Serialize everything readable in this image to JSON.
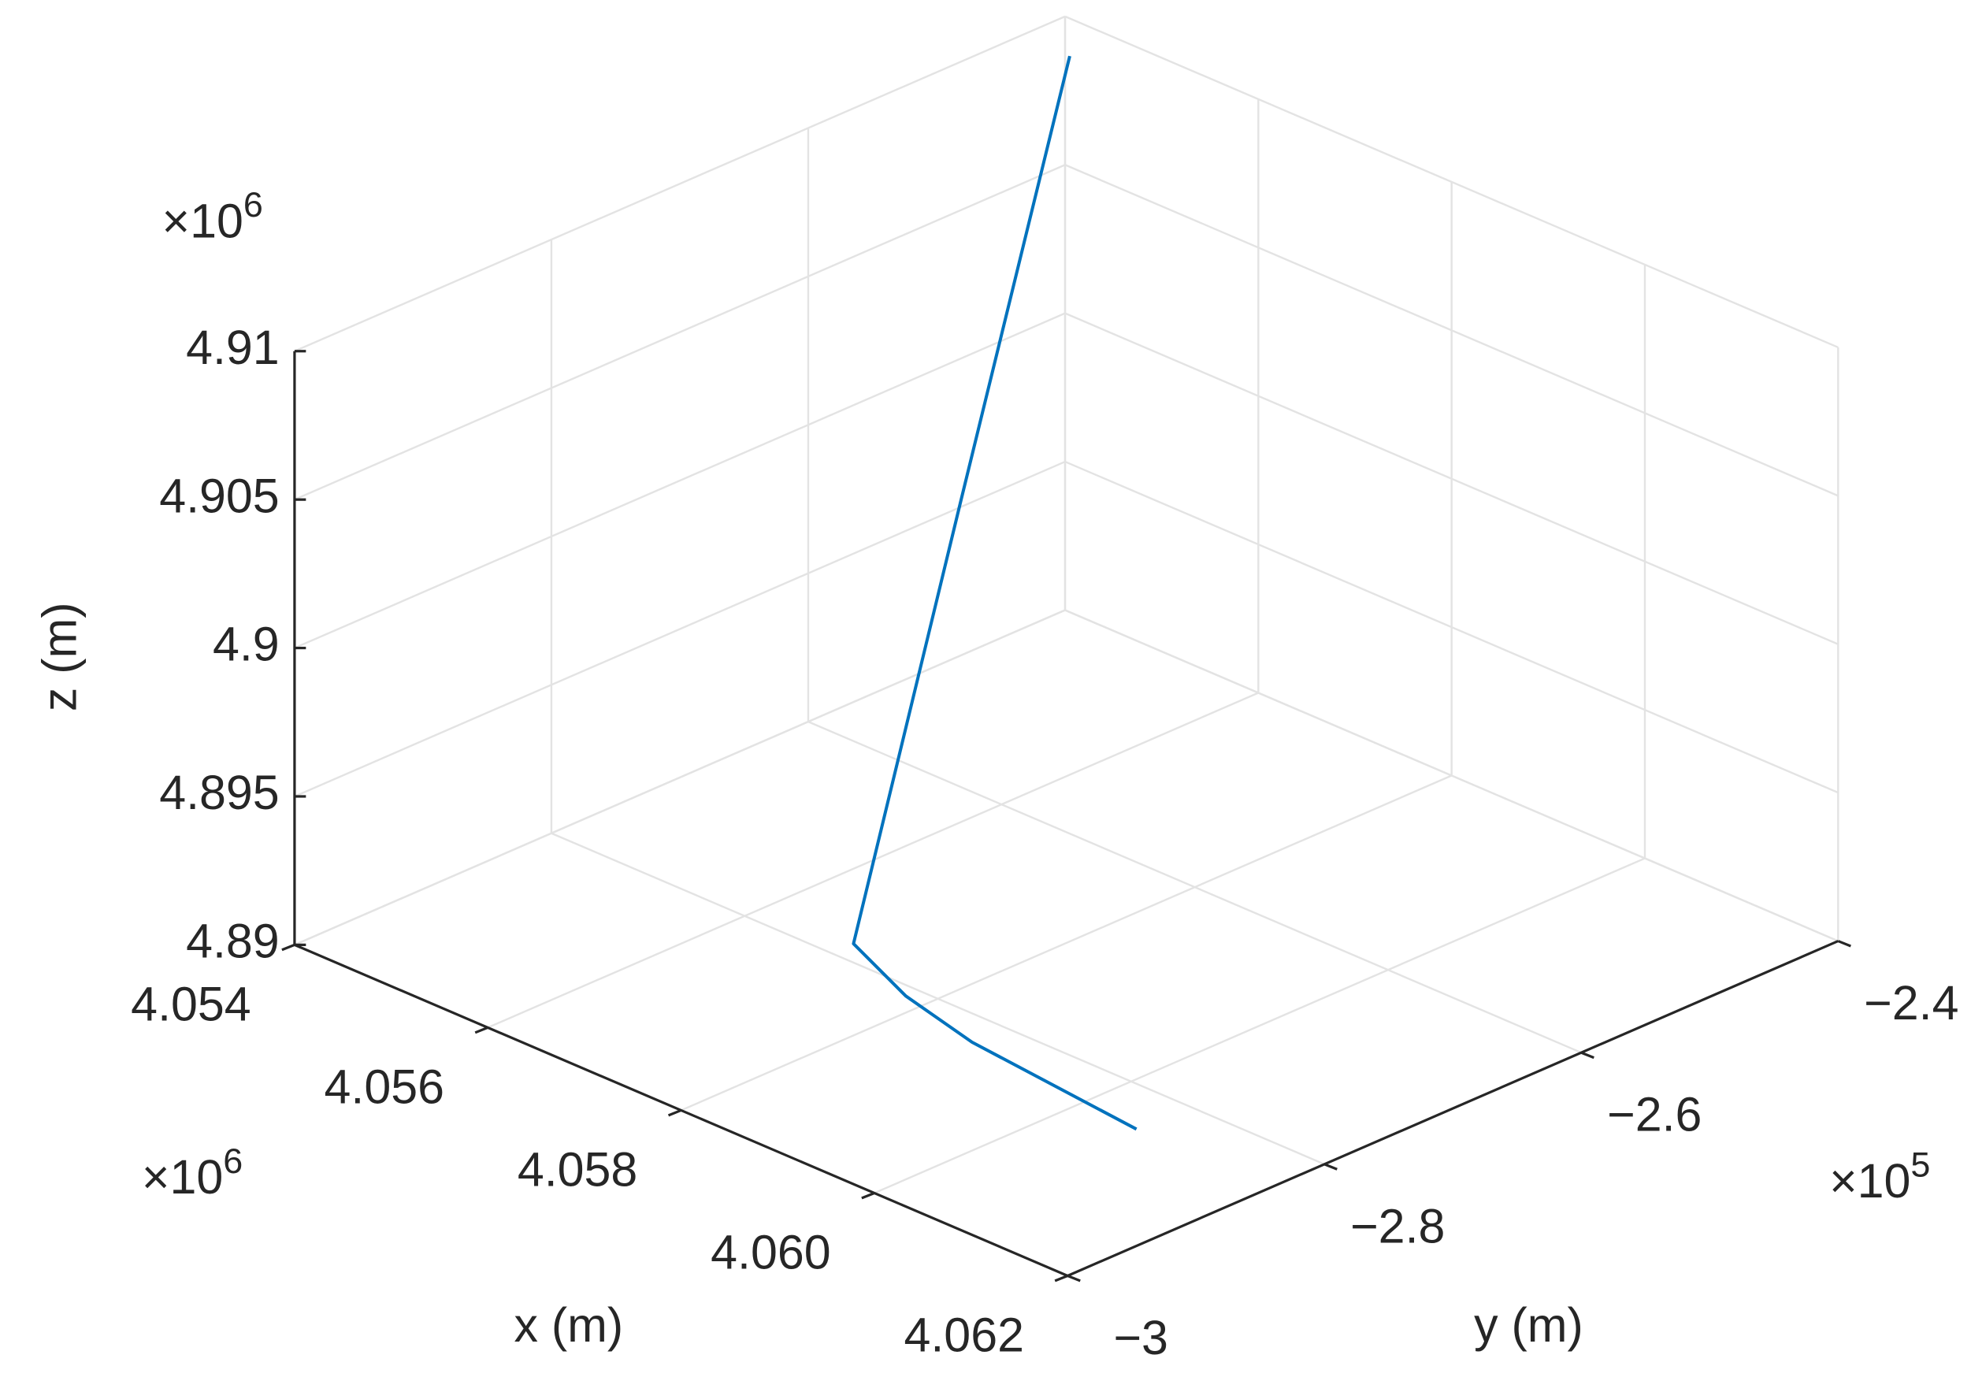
{
  "chart_data": {
    "type": "line3d",
    "xlabel": "x (m)",
    "ylabel": "y (m)",
    "zlabel": "z (m)",
    "x_multiplier": {
      "base": "×10",
      "power": "6"
    },
    "y_multiplier": {
      "base": "×10",
      "power": "5"
    },
    "z_multiplier": {
      "base": "×10",
      "power": "6"
    },
    "xlim": [
      4.054,
      4.062
    ],
    "xticks": [
      4.054,
      4.056,
      4.058,
      {
        "value": 4.06,
        "label": "4.060"
      },
      4.062
    ],
    "ylim": [
      -3,
      -2.4
    ],
    "yticks": [
      {
        "value": -3,
        "label": "−3"
      },
      {
        "value": -2.8,
        "label": "−2.8"
      },
      {
        "value": -2.6,
        "label": "−2.6"
      },
      {
        "value": -2.4,
        "label": "−2.4"
      }
    ],
    "zlim": [
      4.89,
      4.91
    ],
    "zticks": [
      4.89,
      4.895,
      4.9,
      4.905,
      4.91
    ],
    "grid": true,
    "series": [
      {
        "color": "#0072bd",
        "x": [
          4.0606,
          4.0587,
          4.0578,
          4.0569,
          4.0557,
          4.0545
        ],
        "y": [
          -2.841,
          -2.826,
          -2.81,
          -2.783,
          -2.609,
          -2.434
        ],
        "z": [
          4.89,
          4.89,
          4.89,
          4.89,
          4.9,
          4.91
        ]
      }
    ]
  }
}
